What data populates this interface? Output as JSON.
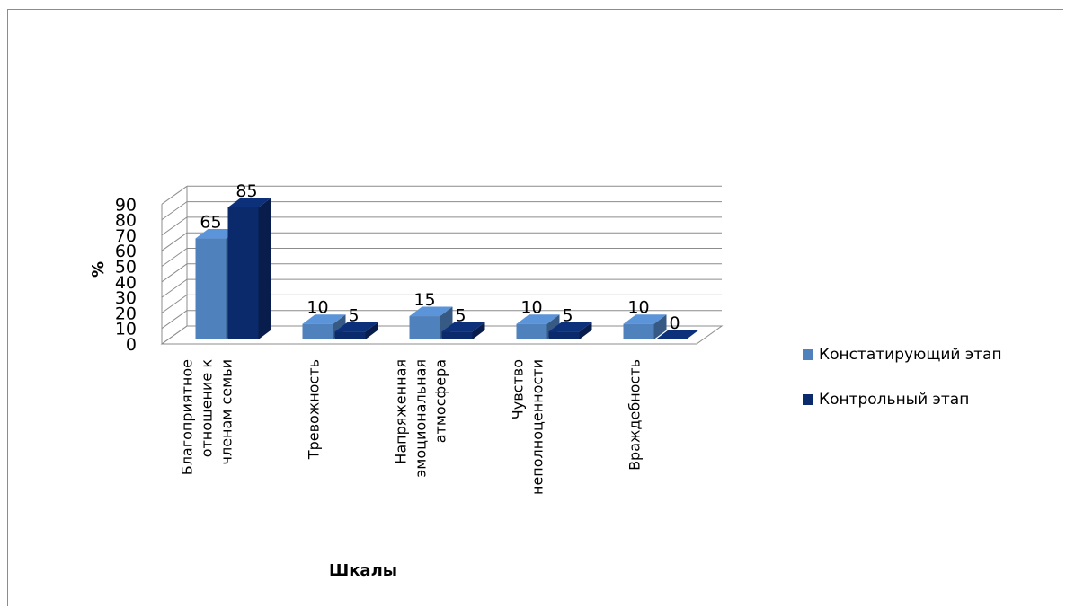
{
  "chart_data": {
    "type": "bar",
    "style": "3d-clustered",
    "categories": [
      [
        "Благоприятное",
        "отношение к",
        "членам семьи"
      ],
      [
        "Тревожность"
      ],
      [
        "Напряженная",
        "эмоциональная",
        "атмосфера"
      ],
      [
        "Чувство",
        "неполноценности"
      ],
      [
        "Враждебность"
      ]
    ],
    "series": [
      {
        "name": "Констатирующий этап",
        "values": [
          65,
          10,
          15,
          10,
          10
        ],
        "color": "#4f81bd"
      },
      {
        "name": "Контрольный этап",
        "values": [
          85,
          5,
          5,
          5,
          0
        ],
        "color": "#0b2a6b"
      }
    ],
    "xlabel": "Шкалы",
    "ylabel": "%",
    "ylim": [
      0,
      90
    ],
    "yticks": [
      0,
      10,
      20,
      30,
      40,
      50,
      60,
      70,
      80,
      90
    ],
    "grid": true,
    "legend": "right"
  }
}
